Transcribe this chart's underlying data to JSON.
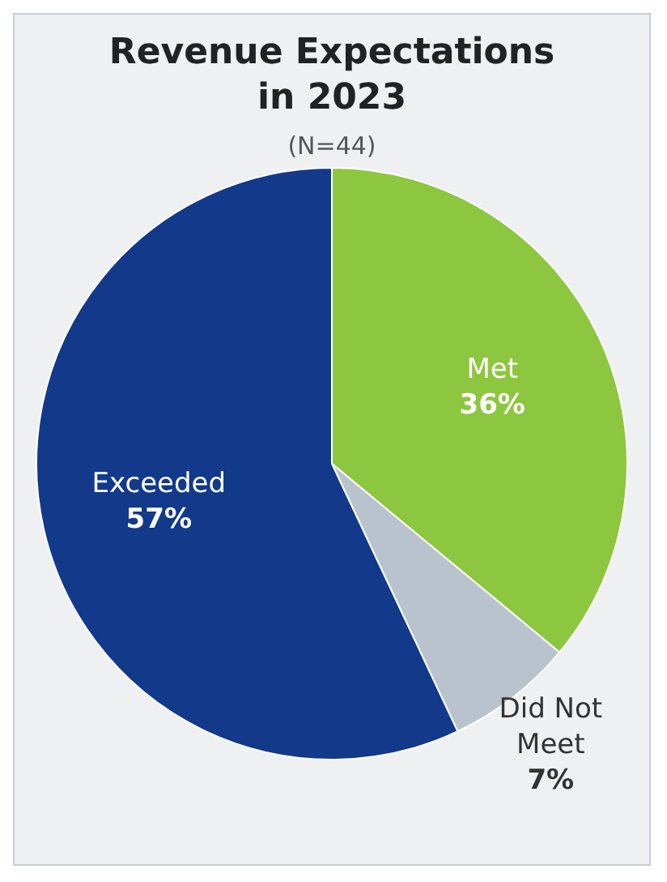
{
  "chart_data": {
    "type": "pie",
    "title": "Revenue Expectations in 2023",
    "subtitle": "(N=44)",
    "categories": [
      "Met",
      "Did Not Meet",
      "Exceeded"
    ],
    "values": [
      36,
      7,
      57
    ],
    "colors": [
      "#8dc63f",
      "#b9c3cd",
      "#12398a"
    ],
    "value_labels": [
      "36%",
      "7%",
      "57%"
    ],
    "legend": false
  }
}
